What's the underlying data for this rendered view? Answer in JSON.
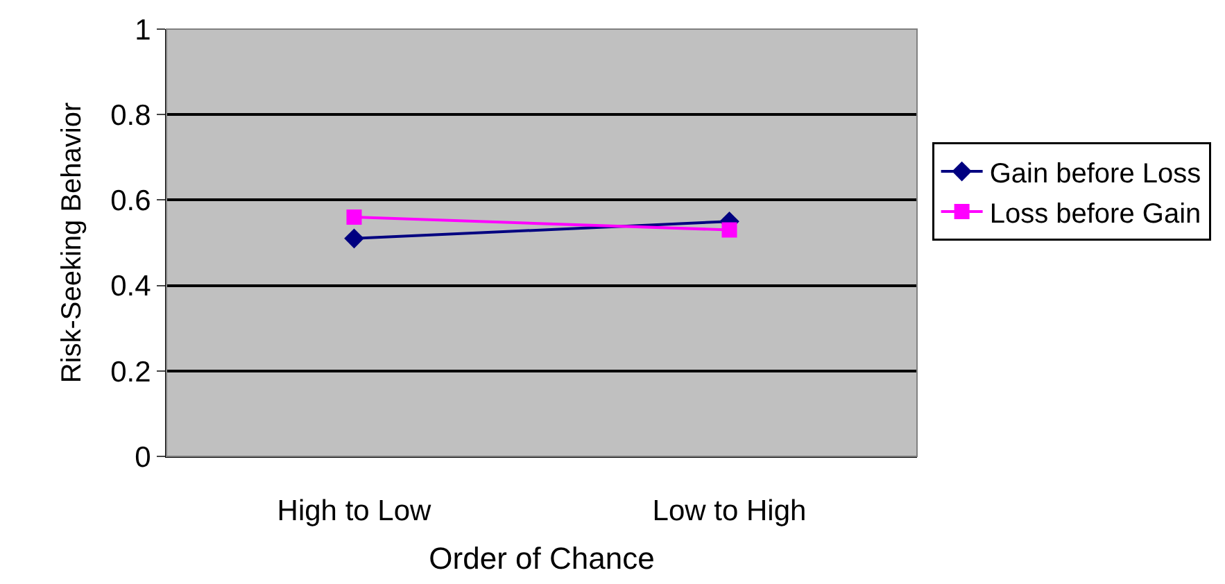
{
  "chart_data": {
    "type": "line",
    "xlabel": "Order of Chance",
    "ylabel": "Risk-Seeking Behavior",
    "categories": [
      "High to Low",
      "Low to High"
    ],
    "series": [
      {
        "name": "Gain before Loss",
        "color": "#000080",
        "values": [
          0.51,
          0.55
        ],
        "marker": "diamond"
      },
      {
        "name": "Loss before Gain",
        "color": "#ff00ff",
        "values": [
          0.56,
          0.53
        ],
        "marker": "square"
      }
    ],
    "ylim": [
      0,
      1
    ],
    "yticks": [
      0,
      0.2,
      0.4,
      0.6,
      0.8,
      1
    ],
    "grid": "y",
    "legend": "right",
    "line_style": "solid"
  }
}
